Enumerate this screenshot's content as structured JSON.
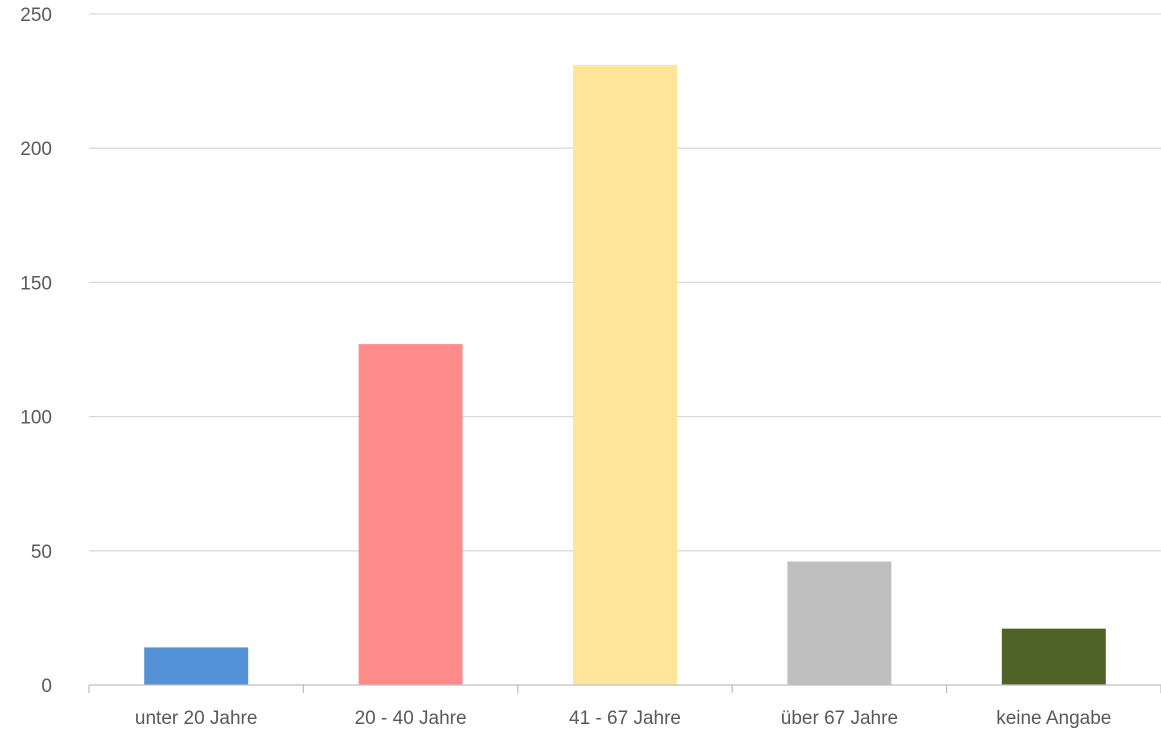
{
  "chart_data": {
    "type": "bar",
    "title": "",
    "xlabel": "",
    "ylabel": "",
    "categories": [
      "unter 20 Jahre",
      "20 - 40 Jahre",
      "41 - 67 Jahre",
      "über 67 Jahre",
      "keine Angabe"
    ],
    "values": [
      14,
      127,
      231,
      46,
      21
    ],
    "colors": [
      "#5591d6",
      "#ff8b8b",
      "#fee599",
      "#bfbfbf",
      "#4f6228"
    ],
    "ylim": [
      0,
      250
    ],
    "yticks": [
      0,
      50,
      100,
      150,
      200,
      250
    ],
    "ytick_labels": [
      "0",
      "50",
      "100",
      "150",
      "200",
      "250"
    ],
    "grid": true,
    "legend": "none"
  }
}
